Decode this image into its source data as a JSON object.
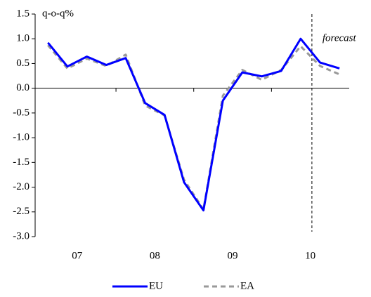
{
  "chart_data": {
    "type": "line",
    "y_label": "q-o-q%",
    "annotation": {
      "text": "forecast",
      "x": 2010.52
    },
    "x": [
      2007.125,
      2007.375,
      2007.625,
      2007.875,
      2008.125,
      2008.375,
      2008.625,
      2008.875,
      2009.125,
      2009.375,
      2009.625,
      2009.875,
      2010.125,
      2010.375,
      2010.625,
      2010.875
    ],
    "xlim": [
      2006.96,
      2011.0
    ],
    "xticks": [
      {
        "value": 2007.5,
        "label": "07"
      },
      {
        "value": 2008.5,
        "label": "08"
      },
      {
        "value": 2009.5,
        "label": "09"
      },
      {
        "value": 2010.5,
        "label": "10"
      }
    ],
    "x_dividers": [
      2008,
      2009,
      2010
    ],
    "ylim": [
      -3.0,
      1.5
    ],
    "yticks": [
      1.5,
      {
        "value": 1.0,
        "label": "1.0"
      },
      0.5,
      {
        "value": 0.0,
        "label": "0.0"
      },
      -0.5,
      {
        "value": -1.0,
        "label": "-1.0"
      },
      -1.5,
      {
        "value": -2.0,
        "label": "-2.0"
      },
      -2.5,
      {
        "value": -3.0,
        "label": "-3.0"
      }
    ],
    "series": [
      {
        "name": "EU",
        "color": "#0000ff",
        "dashed": false,
        "values": [
          0.92,
          0.44,
          0.64,
          0.47,
          0.61,
          -0.3,
          -0.54,
          -1.9,
          -2.47,
          -0.25,
          0.32,
          0.24,
          0.35,
          1.0,
          0.52,
          0.4
        ]
      },
      {
        "name": "EA",
        "color": "#999999",
        "dashed": true,
        "values": [
          0.87,
          0.4,
          0.6,
          0.45,
          0.68,
          -0.35,
          -0.55,
          -1.85,
          -2.45,
          -0.15,
          0.37,
          0.17,
          0.37,
          0.85,
          0.45,
          0.28
        ]
      }
    ]
  }
}
